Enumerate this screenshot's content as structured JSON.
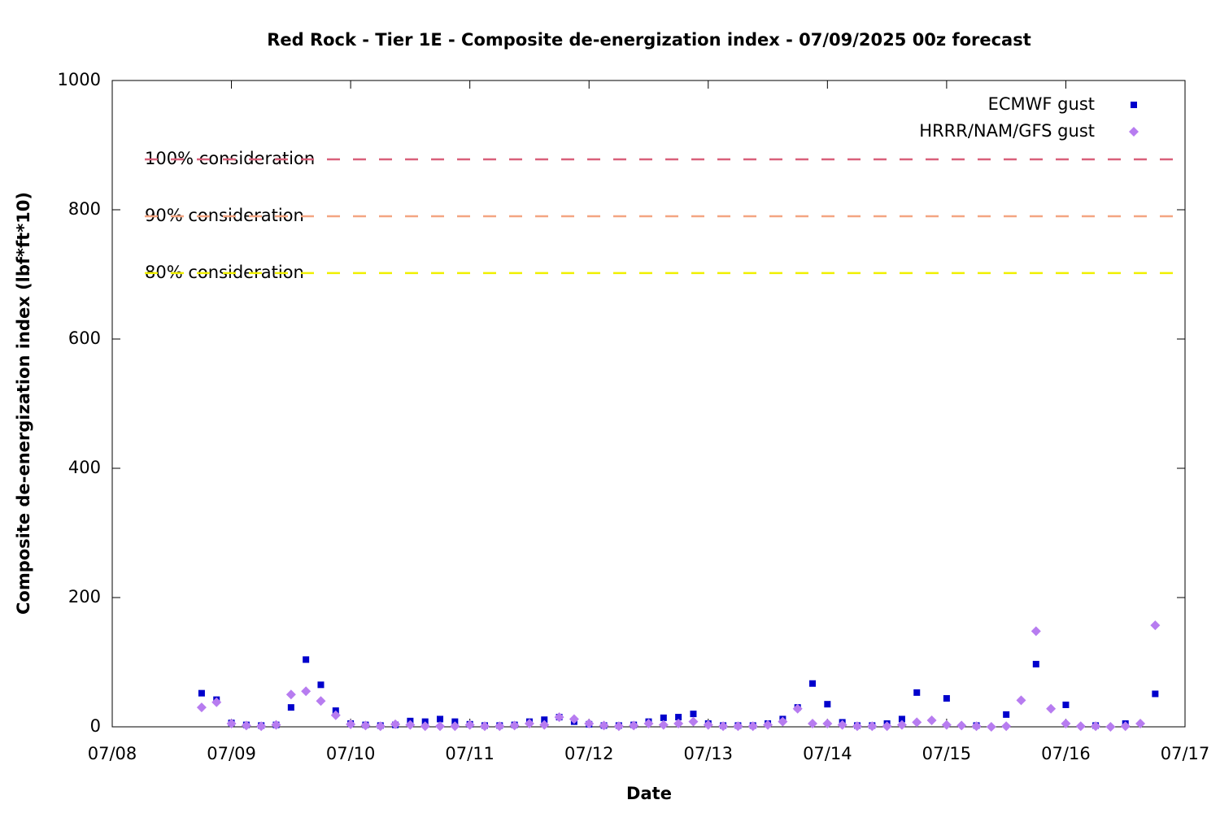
{
  "chart_data": {
    "type": "scatter",
    "title": "Red Rock - Tier 1E - Composite de-energization index - 07/09/2025 00z forecast",
    "xlabel": "Date",
    "ylabel": "Composite de-energization index (lbf*ft*10)",
    "xlim": [
      8,
      17
    ],
    "xticks": [
      {
        "value": 8,
        "label": "07/08"
      },
      {
        "value": 9,
        "label": "07/09"
      },
      {
        "value": 10,
        "label": "07/10"
      },
      {
        "value": 11,
        "label": "07/11"
      },
      {
        "value": 12,
        "label": "07/12"
      },
      {
        "value": 13,
        "label": "07/13"
      },
      {
        "value": 14,
        "label": "07/14"
      },
      {
        "value": 15,
        "label": "07/15"
      },
      {
        "value": 16,
        "label": "07/16"
      },
      {
        "value": 17,
        "label": "07/17"
      }
    ],
    "ylim": [
      0,
      1000
    ],
    "yticks": [
      0,
      200,
      400,
      600,
      800,
      1000
    ],
    "legend": "top-right",
    "thresholds": [
      {
        "label": "100% consideration",
        "value": 878,
        "color": "#d9607a"
      },
      {
        "label": "90% consideration",
        "value": 790,
        "color": "#f4a582"
      },
      {
        "label": "80% consideration",
        "value": 702,
        "color": "#f0f000"
      }
    ],
    "series": [
      {
        "name": "ECMWF gust",
        "color": "#0000cc",
        "marker": "square",
        "x": [
          8.75,
          8.875,
          9.0,
          9.125,
          9.25,
          9.375,
          9.5,
          9.625,
          9.75,
          9.875,
          10.0,
          10.125,
          10.25,
          10.375,
          10.5,
          10.625,
          10.75,
          10.875,
          11.0,
          11.125,
          11.25,
          11.375,
          11.5,
          11.625,
          11.75,
          11.875,
          12.0,
          12.125,
          12.25,
          12.375,
          12.5,
          12.625,
          12.75,
          12.875,
          13.0,
          13.125,
          13.25,
          13.375,
          13.5,
          13.625,
          13.75,
          13.875,
          14.0,
          14.125,
          14.25,
          14.375,
          14.5,
          14.625,
          14.75,
          15.0,
          15.25,
          15.5,
          15.75,
          16.0,
          16.25,
          16.5,
          16.75
        ],
        "values": [
          52,
          42,
          6,
          3,
          2,
          3,
          30,
          104,
          65,
          25,
          5,
          3,
          2,
          3,
          9,
          8,
          12,
          8,
          4,
          2,
          2,
          3,
          8,
          11,
          15,
          8,
          4,
          2,
          2,
          3,
          8,
          14,
          15,
          20,
          5,
          2,
          2,
          2,
          5,
          12,
          30,
          67,
          35,
          7,
          2,
          2,
          5,
          12,
          53,
          44,
          2,
          19,
          97,
          34,
          2,
          5,
          51
        ]
      },
      {
        "name": "HRRR/NAM/GFS gust",
        "color": "#b77cf0",
        "marker": "diamond",
        "x": [
          8.75,
          8.875,
          9.0,
          9.125,
          9.25,
          9.375,
          9.5,
          9.625,
          9.75,
          9.875,
          10.0,
          10.125,
          10.25,
          10.375,
          10.5,
          10.625,
          10.75,
          10.875,
          11.0,
          11.125,
          11.25,
          11.375,
          11.5,
          11.625,
          11.75,
          11.875,
          12.0,
          12.125,
          12.25,
          12.375,
          12.5,
          12.625,
          12.75,
          12.875,
          13.0,
          13.125,
          13.25,
          13.375,
          13.5,
          13.625,
          13.75,
          13.875,
          14.0,
          14.125,
          14.25,
          14.375,
          14.5,
          14.625,
          14.75,
          14.875,
          15.0,
          15.125,
          15.25,
          15.375,
          15.5,
          15.625,
          15.75,
          15.875,
          16.0,
          16.125,
          16.25,
          16.375,
          16.5,
          16.625,
          16.75
        ],
        "values": [
          30,
          38,
          5,
          2,
          1,
          3,
          50,
          55,
          40,
          18,
          4,
          2,
          1,
          4,
          3,
          1,
          1,
          1,
          3,
          1,
          1,
          2,
          5,
          3,
          15,
          12,
          5,
          2,
          1,
          2,
          5,
          3,
          5,
          8,
          3,
          1,
          1,
          1,
          3,
          8,
          28,
          5,
          5,
          3,
          1,
          1,
          1,
          3,
          7,
          10,
          3,
          2,
          1,
          0,
          1,
          41,
          148,
          28,
          5,
          1,
          1,
          0,
          1,
          5,
          157
        ]
      }
    ]
  }
}
